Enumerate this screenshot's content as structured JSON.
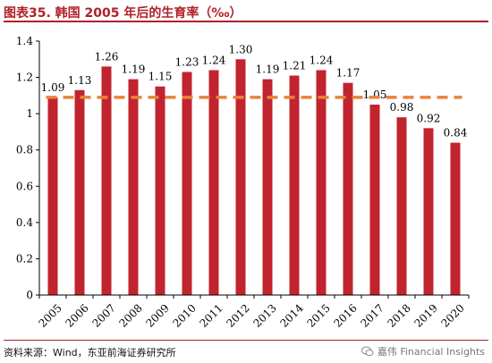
{
  "header": {
    "title": "图表35.  韩国 2005 年后的生育率（‰）"
  },
  "footer": {
    "source": "资料来源：Wind，东亚前海证券研究所",
    "watermark": "嘉伟 Financial Insights"
  },
  "chart_data": {
    "type": "bar",
    "categories": [
      "2005",
      "2006",
      "2007",
      "2008",
      "2009",
      "2010",
      "2011",
      "2012",
      "2013",
      "2014",
      "2015",
      "2016",
      "2017",
      "2018",
      "2019",
      "2020"
    ],
    "values": [
      1.09,
      1.13,
      1.26,
      1.19,
      1.15,
      1.23,
      1.24,
      1.3,
      1.19,
      1.21,
      1.24,
      1.17,
      1.05,
      0.98,
      0.92,
      0.84
    ],
    "labels": [
      "1.09",
      "1.13",
      "1.26",
      "1.19",
      "1.15",
      "1.23",
      "1.24",
      "1.30",
      "1.19",
      "1.21",
      "1.24",
      "1.17",
      "1.05",
      "0.98",
      "0.92",
      "0.84"
    ],
    "yticks": [
      "0",
      "0.2",
      "0.4",
      "0.6",
      "0.8",
      "1",
      "1.2",
      "1.4"
    ],
    "ylim": [
      0,
      1.4
    ],
    "reference_line": {
      "value": 1.09,
      "style": "dashed",
      "color": "#e8833a"
    },
    "bar_color": "#c1242f",
    "grid": false,
    "title": "",
    "xlabel": "",
    "ylabel": ""
  }
}
